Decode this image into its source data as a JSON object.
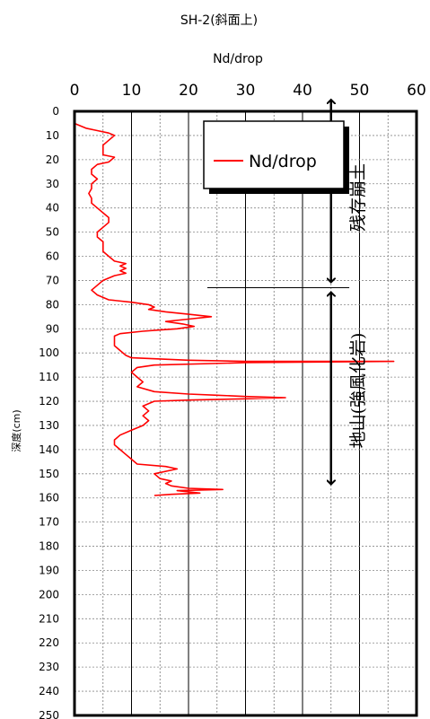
{
  "chart_data": {
    "type": "line",
    "title": "SH-2(斜面上)",
    "xlabel": "Nd/drop",
    "ylabel": "深度(cm)",
    "xlim": [
      0,
      60
    ],
    "ylim": [
      0,
      250
    ],
    "x_ticks": [
      "0",
      "10",
      "20",
      "30",
      "40",
      "50",
      "60"
    ],
    "y_ticks": [
      "0",
      "10",
      "20",
      "30",
      "40",
      "50",
      "60",
      "70",
      "80",
      "90",
      "100",
      "110",
      "120",
      "130",
      "140",
      "150",
      "160",
      "170",
      "180",
      "190",
      "200",
      "210",
      "220",
      "230",
      "240",
      "250"
    ],
    "y_inverted": true,
    "x_axis_position": "top",
    "grid": true,
    "legend": {
      "position": "top-right",
      "entries": [
        "Nd/drop"
      ]
    },
    "series": [
      {
        "name": "Nd/drop",
        "color": "#ff0000",
        "points": [
          [
            0,
            5
          ],
          [
            2,
            7
          ],
          [
            4,
            8
          ],
          [
            6,
            9
          ],
          [
            7,
            10
          ],
          [
            6,
            12
          ],
          [
            5,
            14
          ],
          [
            5,
            16
          ],
          [
            5,
            18
          ],
          [
            7,
            19
          ],
          [
            6,
            21
          ],
          [
            4,
            22
          ],
          [
            3,
            24
          ],
          [
            3,
            26
          ],
          [
            4,
            28
          ],
          [
            3,
            30
          ],
          [
            3,
            32
          ],
          [
            2.5,
            34
          ],
          [
            3,
            36
          ],
          [
            3,
            38
          ],
          [
            4,
            40
          ],
          [
            5,
            42
          ],
          [
            6,
            44
          ],
          [
            6,
            46
          ],
          [
            5,
            48
          ],
          [
            4,
            50
          ],
          [
            4,
            52
          ],
          [
            5,
            54
          ],
          [
            5,
            56
          ],
          [
            5,
            58
          ],
          [
            6,
            60
          ],
          [
            7,
            62
          ],
          [
            9,
            63
          ],
          [
            8,
            64
          ],
          [
            9,
            65
          ],
          [
            8,
            66
          ],
          [
            9,
            67
          ],
          [
            7,
            68
          ],
          [
            5,
            70
          ],
          [
            4,
            72
          ],
          [
            3,
            74
          ],
          [
            4,
            76
          ],
          [
            6,
            78
          ],
          [
            10,
            79
          ],
          [
            13,
            80
          ],
          [
            14,
            81
          ],
          [
            13,
            82
          ],
          [
            16,
            83
          ],
          [
            20,
            84
          ],
          [
            24,
            85
          ],
          [
            20,
            86
          ],
          [
            16,
            87
          ],
          [
            19,
            88
          ],
          [
            21,
            89
          ],
          [
            18,
            90
          ],
          [
            15,
            90.5
          ],
          [
            12,
            91
          ],
          [
            8,
            92
          ],
          [
            7,
            93
          ],
          [
            7,
            95
          ],
          [
            7,
            97
          ],
          [
            8,
            99
          ],
          [
            9,
            101
          ],
          [
            10,
            102
          ],
          [
            20,
            103
          ],
          [
            30,
            103.5
          ],
          [
            56,
            103.5
          ],
          [
            30,
            104
          ],
          [
            14,
            105
          ],
          [
            11,
            106
          ],
          [
            10,
            108
          ],
          [
            11,
            110
          ],
          [
            12,
            112
          ],
          [
            11,
            114
          ],
          [
            14,
            116
          ],
          [
            20,
            117
          ],
          [
            25,
            117.5
          ],
          [
            30,
            118
          ],
          [
            37,
            118.5
          ],
          [
            30,
            119
          ],
          [
            20,
            119.5
          ],
          [
            14,
            120
          ],
          [
            12,
            122
          ],
          [
            13,
            124
          ],
          [
            12,
            126
          ],
          [
            13,
            128
          ],
          [
            12,
            130
          ],
          [
            10,
            132
          ],
          [
            8,
            134
          ],
          [
            7,
            136
          ],
          [
            7,
            138
          ],
          [
            8,
            140
          ],
          [
            9,
            142
          ],
          [
            10,
            144
          ],
          [
            11,
            146
          ],
          [
            16,
            147
          ],
          [
            18,
            148
          ],
          [
            14,
            150
          ],
          [
            15,
            152
          ],
          [
            17,
            153
          ],
          [
            16,
            154
          ],
          [
            17,
            155
          ],
          [
            20,
            156
          ],
          [
            26,
            156.5
          ],
          [
            18,
            157
          ],
          [
            22,
            158
          ],
          [
            17,
            158.5
          ],
          [
            14,
            159
          ]
        ]
      }
    ],
    "annotations": [
      {
        "text": "残存崩土",
        "from_y": 0,
        "to_y": 73,
        "x": 45
      },
      {
        "text": "地山(強風化岩)",
        "from_y": 73,
        "to_y": 154,
        "x": 45
      }
    ]
  }
}
